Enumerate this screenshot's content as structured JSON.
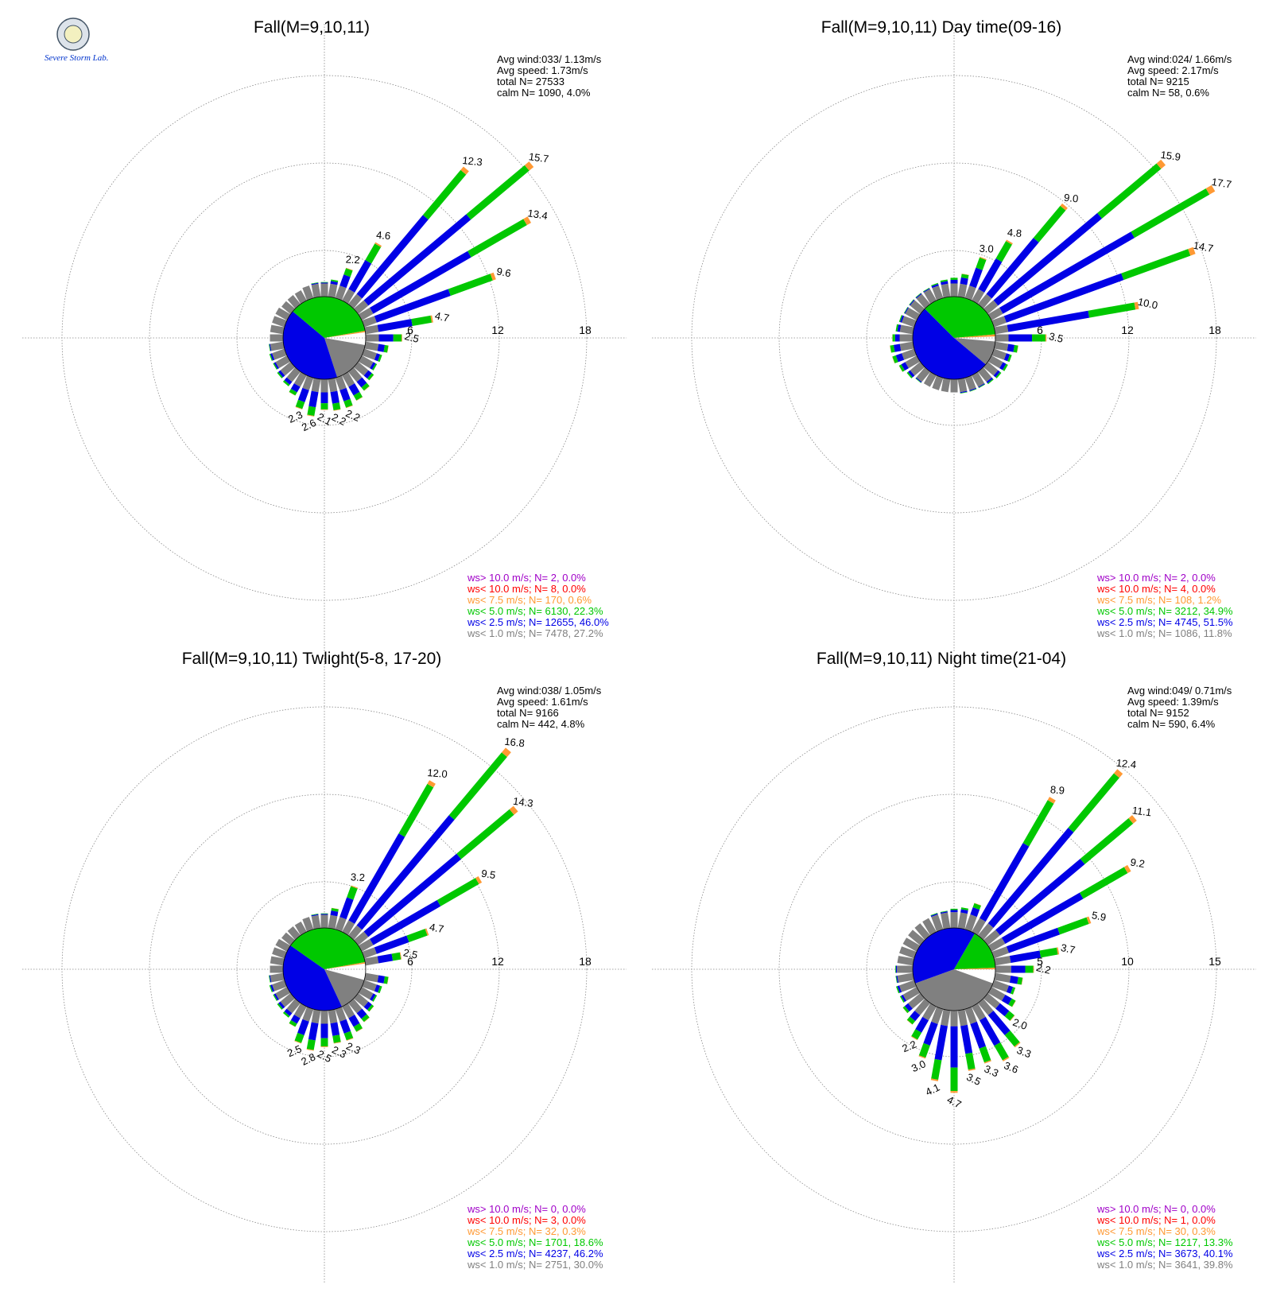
{
  "colors": {
    "purple": "#a000c8",
    "red": "#ff0000",
    "orange": "#ff9933",
    "green": "#00c800",
    "blue": "#0000e6",
    "gray": "#808080",
    "ring": "#888888"
  },
  "logo": {
    "text": "Severe Storm Lab."
  },
  "chart_data": [
    {
      "type": "wind-rose",
      "title": "Fall(M=9,10,11)",
      "ring_labels": [
        "6",
        "12",
        "18"
      ],
      "r_max": 18,
      "stats": [
        "Avg wind:033/ 1.13m/s",
        "Avg speed: 1.73m/s",
        "total N=      27533",
        "calm N=   1090,   4.0%"
      ],
      "legend": [
        "ws> 10.0 m/s; N=      2,  0.0%",
        "ws< 10.0 m/s; N=      8,  0.0%",
        "ws<  7.5 m/s; N=    170,  0.6%",
        "ws<  5.0 m/s; N=  6130, 22.3%",
        "ws<  2.5 m/s; N= 12655, 46.0%",
        "ws<  1.0 m/s; N=  7478, 27.2%"
      ],
      "pie": [
        {
          "color": "gray",
          "from": -10,
          "to": -72
        },
        {
          "color": "blue",
          "from": -72,
          "to": -220
        },
        {
          "color": "green",
          "from": -220,
          "to": -350
        },
        {
          "color": "orange",
          "from": -350,
          "to": -352
        }
      ],
      "bars": [
        {
          "dir": 10,
          "value": 1.2
        },
        {
          "dir": 20,
          "value": 2.2,
          "label": "2.2"
        },
        {
          "dir": 30,
          "value": 4.6,
          "label": "4.6"
        },
        {
          "dir": 40,
          "value": 12.3,
          "label": "12.3"
        },
        {
          "dir": 50,
          "value": 15.7,
          "label": "15.7"
        },
        {
          "dir": 60,
          "value": 13.4,
          "label": "13.4"
        },
        {
          "dir": 70,
          "value": 9.6,
          "label": "9.6"
        },
        {
          "dir": 80,
          "value": 4.7,
          "label": "4.7"
        },
        {
          "dir": 90,
          "value": 2.5,
          "label": "2.5"
        },
        {
          "dir": 100,
          "value": 1.6
        },
        {
          "dir": 110,
          "value": 1.3
        },
        {
          "dir": 120,
          "value": 1.2
        },
        {
          "dir": 130,
          "value": 1.4
        },
        {
          "dir": 140,
          "value": 1.7
        },
        {
          "dir": 150,
          "value": 2.0
        },
        {
          "dir": 160,
          "value": 2.2,
          "label": "2.2"
        },
        {
          "dir": 170,
          "value": 2.2,
          "label": "2.2"
        },
        {
          "dir": 180,
          "value": 2.1,
          "label": "2.1"
        },
        {
          "dir": 190,
          "value": 2.6,
          "label": "2.6"
        },
        {
          "dir": 200,
          "value": 2.3,
          "label": "2.3"
        },
        {
          "dir": 210,
          "value": 1.6
        },
        {
          "dir": 220,
          "value": 1.3
        },
        {
          "dir": 230,
          "value": 1.2
        },
        {
          "dir": 240,
          "value": 1.1
        },
        {
          "dir": 250,
          "value": 1.1
        },
        {
          "dir": 260,
          "value": 1.0
        },
        {
          "dir": 270,
          "value": 0.9
        },
        {
          "dir": 280,
          "value": 0.9
        },
        {
          "dir": 290,
          "value": 0.9
        },
        {
          "dir": 300,
          "value": 0.9
        },
        {
          "dir": 310,
          "value": 0.8
        },
        {
          "dir": 320,
          "value": 0.8
        },
        {
          "dir": 330,
          "value": 0.8
        },
        {
          "dir": 340,
          "value": 0.9
        },
        {
          "dir": 350,
          "value": 1.0
        },
        {
          "dir": 360,
          "value": 1.0
        }
      ]
    },
    {
      "type": "wind-rose",
      "title": "Fall(M=9,10,11) Day time(09-16)",
      "ring_labels": [
        "6",
        "12",
        "18"
      ],
      "r_max": 18,
      "stats": [
        "Avg wind:024/ 1.66m/s",
        "Avg speed: 2.17m/s",
        "total N=        9215",
        "calm N=     58,   0.6%"
      ],
      "legend": [
        "ws> 10.0 m/s; N=      2,  0.0%",
        "ws< 10.0 m/s; N=      4,  0.0%",
        "ws<  7.5 m/s; N=    108,  1.2%",
        "ws<  5.0 m/s; N=  3212, 34.9%",
        "ws<  2.5 m/s; N=  4745, 51.5%",
        "ws<  1.0 m/s; N=  1086, 11.8%"
      ],
      "pie": [
        {
          "color": "gray",
          "from": -5,
          "to": -40
        },
        {
          "color": "blue",
          "from": -40,
          "to": -225
        },
        {
          "color": "green",
          "from": -225,
          "to": -355
        },
        {
          "color": "orange",
          "from": -355,
          "to": -358
        }
      ],
      "bars": [
        {
          "dir": 10,
          "value": 1.6
        },
        {
          "dir": 20,
          "value": 3.0,
          "label": "3.0"
        },
        {
          "dir": 30,
          "value": 4.8,
          "label": "4.8"
        },
        {
          "dir": 40,
          "value": 9.0,
          "label": "9.0"
        },
        {
          "dir": 50,
          "value": 15.9,
          "label": "15.9"
        },
        {
          "dir": 60,
          "value": 17.7,
          "label": "17.7"
        },
        {
          "dir": 70,
          "value": 14.7,
          "label": "14.7"
        },
        {
          "dir": 80,
          "value": 10.0,
          "label": "10.0"
        },
        {
          "dir": 90,
          "value": 3.5,
          "label": "3.5"
        },
        {
          "dir": 100,
          "value": 1.6
        },
        {
          "dir": 110,
          "value": 1.3
        },
        {
          "dir": 120,
          "value": 1.3
        },
        {
          "dir": 130,
          "value": 1.2
        },
        {
          "dir": 140,
          "value": 1.1
        },
        {
          "dir": 150,
          "value": 1.0
        },
        {
          "dir": 160,
          "value": 1.0
        },
        {
          "dir": 170,
          "value": 1.0
        },
        {
          "dir": 180,
          "value": 0.9
        },
        {
          "dir": 190,
          "value": 0.9
        },
        {
          "dir": 200,
          "value": 0.9
        },
        {
          "dir": 210,
          "value": 0.9
        },
        {
          "dir": 220,
          "value": 1.0
        },
        {
          "dir": 230,
          "value": 1.2
        },
        {
          "dir": 240,
          "value": 1.4
        },
        {
          "dir": 250,
          "value": 1.6
        },
        {
          "dir": 260,
          "value": 1.6
        },
        {
          "dir": 270,
          "value": 1.4
        },
        {
          "dir": 280,
          "value": 1.2
        },
        {
          "dir": 290,
          "value": 1.1
        },
        {
          "dir": 300,
          "value": 1.0
        },
        {
          "dir": 310,
          "value": 1.0
        },
        {
          "dir": 320,
          "value": 1.0
        },
        {
          "dir": 330,
          "value": 1.0
        },
        {
          "dir": 340,
          "value": 1.1
        },
        {
          "dir": 350,
          "value": 1.2
        },
        {
          "dir": 360,
          "value": 1.3
        }
      ]
    },
    {
      "type": "wind-rose",
      "title": "Fall(M=9,10,11) Twlight(5-8, 17-20)",
      "ring_labels": [
        "6",
        "12",
        "18"
      ],
      "r_max": 18,
      "stats": [
        "Avg wind:038/ 1.05m/s",
        "Avg speed: 1.61m/s",
        "total N=        9166",
        "calm N=    442,   4.8%"
      ],
      "legend": [
        "ws> 10.0 m/s; N=      0,  0.0%",
        "ws< 10.0 m/s; N=      3,  0.0%",
        "ws<  7.5 m/s; N=     32,  0.3%",
        "ws<  5.0 m/s; N=  1701, 18.6%",
        "ws<  2.5 m/s; N=  4237, 46.2%",
        "ws<  1.0 m/s; N=  2751, 30.0%"
      ],
      "pie": [
        {
          "color": "gray",
          "from": -15,
          "to": -65
        },
        {
          "color": "blue",
          "from": -65,
          "to": -215
        },
        {
          "color": "green",
          "from": -215,
          "to": -350
        },
        {
          "color": "orange",
          "from": -350,
          "to": -352
        }
      ],
      "bars": [
        {
          "dir": 10,
          "value": 1.4
        },
        {
          "dir": 20,
          "value": 3.2,
          "label": "3.2"
        },
        {
          "dir": 30,
          "value": 12.0,
          "label": "12.0"
        },
        {
          "dir": 40,
          "value": 16.8,
          "label": "16.8"
        },
        {
          "dir": 50,
          "value": 14.3,
          "label": "14.3"
        },
        {
          "dir": 60,
          "value": 9.5,
          "label": "9.5"
        },
        {
          "dir": 70,
          "value": 4.7,
          "label": "4.7"
        },
        {
          "dir": 80,
          "value": 2.5,
          "label": "2.5"
        },
        {
          "dir": 100,
          "value": 1.6
        },
        {
          "dir": 110,
          "value": 1.3
        },
        {
          "dir": 120,
          "value": 1.2
        },
        {
          "dir": 130,
          "value": 1.4
        },
        {
          "dir": 140,
          "value": 1.7
        },
        {
          "dir": 150,
          "value": 2.0
        },
        {
          "dir": 160,
          "value": 2.3,
          "label": "2.3"
        },
        {
          "dir": 170,
          "value": 2.3,
          "label": "2.3"
        },
        {
          "dir": 180,
          "value": 2.5,
          "label": "2.5"
        },
        {
          "dir": 190,
          "value": 2.8,
          "label": "2.8"
        },
        {
          "dir": 200,
          "value": 2.5,
          "label": "2.5"
        },
        {
          "dir": 210,
          "value": 1.6
        },
        {
          "dir": 220,
          "value": 1.3
        },
        {
          "dir": 230,
          "value": 1.2
        },
        {
          "dir": 240,
          "value": 1.1
        },
        {
          "dir": 250,
          "value": 1.1
        },
        {
          "dir": 260,
          "value": 1.0
        },
        {
          "dir": 270,
          "value": 0.9
        },
        {
          "dir": 280,
          "value": 0.9
        },
        {
          "dir": 290,
          "value": 0.9
        },
        {
          "dir": 300,
          "value": 0.9
        },
        {
          "dir": 310,
          "value": 0.8
        },
        {
          "dir": 320,
          "value": 0.8
        },
        {
          "dir": 330,
          "value": 0.8
        },
        {
          "dir": 340,
          "value": 0.9
        },
        {
          "dir": 350,
          "value": 1.0
        },
        {
          "dir": 360,
          "value": 1.0
        }
      ]
    },
    {
      "type": "wind-rose",
      "title": "Fall(M=9,10,11) Night time(21-04)",
      "ring_labels": [
        "5",
        "10",
        "15"
      ],
      "r_max": 15,
      "stats": [
        "Avg wind:049/ 0.71m/s",
        "Avg speed: 1.39m/s",
        "total N=        9152",
        "calm N=    590,   6.4%"
      ],
      "legend": [
        "ws> 10.0 m/s; N=      0,  0.0%",
        "ws< 10.0 m/s; N=      1,  0.0%",
        "ws<  7.5 m/s; N=     30,  0.3%",
        "ws<  5.0 m/s; N=  1217, 13.3%",
        "ws<  2.5 m/s; N=  3673, 40.1%",
        "ws<  1.0 m/s; N=  3641, 39.8%"
      ],
      "pie": [
        {
          "color": "gray",
          "from": -20,
          "to": -160
        },
        {
          "color": "blue",
          "from": -160,
          "to": -300
        },
        {
          "color": "green",
          "from": -300,
          "to": -358
        },
        {
          "color": "orange",
          "from": -358,
          "to": -360
        }
      ],
      "bars": [
        {
          "dir": 10,
          "value": 1.2
        },
        {
          "dir": 20,
          "value": 1.6
        },
        {
          "dir": 30,
          "value": 8.9,
          "label": "8.9"
        },
        {
          "dir": 40,
          "value": 12.4,
          "label": "12.4"
        },
        {
          "dir": 50,
          "value": 11.1,
          "label": "11.1"
        },
        {
          "dir": 60,
          "value": 9.2,
          "label": "9.2"
        },
        {
          "dir": 70,
          "value": 5.9,
          "label": "5.9"
        },
        {
          "dir": 80,
          "value": 3.7,
          "label": "3.7"
        },
        {
          "dir": 90,
          "value": 2.2,
          "label": "2.2"
        },
        {
          "dir": 100,
          "value": 1.6
        },
        {
          "dir": 110,
          "value": 1.3
        },
        {
          "dir": 120,
          "value": 1.6
        },
        {
          "dir": 130,
          "value": 2.0,
          "label": "2.0"
        },
        {
          "dir": 140,
          "value": 3.3,
          "label": "3.3"
        },
        {
          "dir": 150,
          "value": 3.6,
          "label": "3.6"
        },
        {
          "dir": 160,
          "value": 3.3,
          "label": "3.3"
        },
        {
          "dir": 170,
          "value": 3.5,
          "label": "3.5"
        },
        {
          "dir": 180,
          "value": 4.7,
          "label": "4.7"
        },
        {
          "dir": 190,
          "value": 4.1,
          "label": "4.1"
        },
        {
          "dir": 200,
          "value": 3.0,
          "label": "3.0"
        },
        {
          "dir": 210,
          "value": 2.2,
          "label": "2.2"
        },
        {
          "dir": 220,
          "value": 1.6
        },
        {
          "dir": 230,
          "value": 1.3
        },
        {
          "dir": 240,
          "value": 1.1
        },
        {
          "dir": 250,
          "value": 1.1
        },
        {
          "dir": 260,
          "value": 1.0
        },
        {
          "dir": 270,
          "value": 1.0
        },
        {
          "dir": 280,
          "value": 0.9
        },
        {
          "dir": 290,
          "value": 0.9
        },
        {
          "dir": 300,
          "value": 0.9
        },
        {
          "dir": 310,
          "value": 0.9
        },
        {
          "dir": 320,
          "value": 0.9
        },
        {
          "dir": 330,
          "value": 0.9
        },
        {
          "dir": 340,
          "value": 1.0
        },
        {
          "dir": 350,
          "value": 1.0
        },
        {
          "dir": 360,
          "value": 1.1
        }
      ]
    }
  ]
}
